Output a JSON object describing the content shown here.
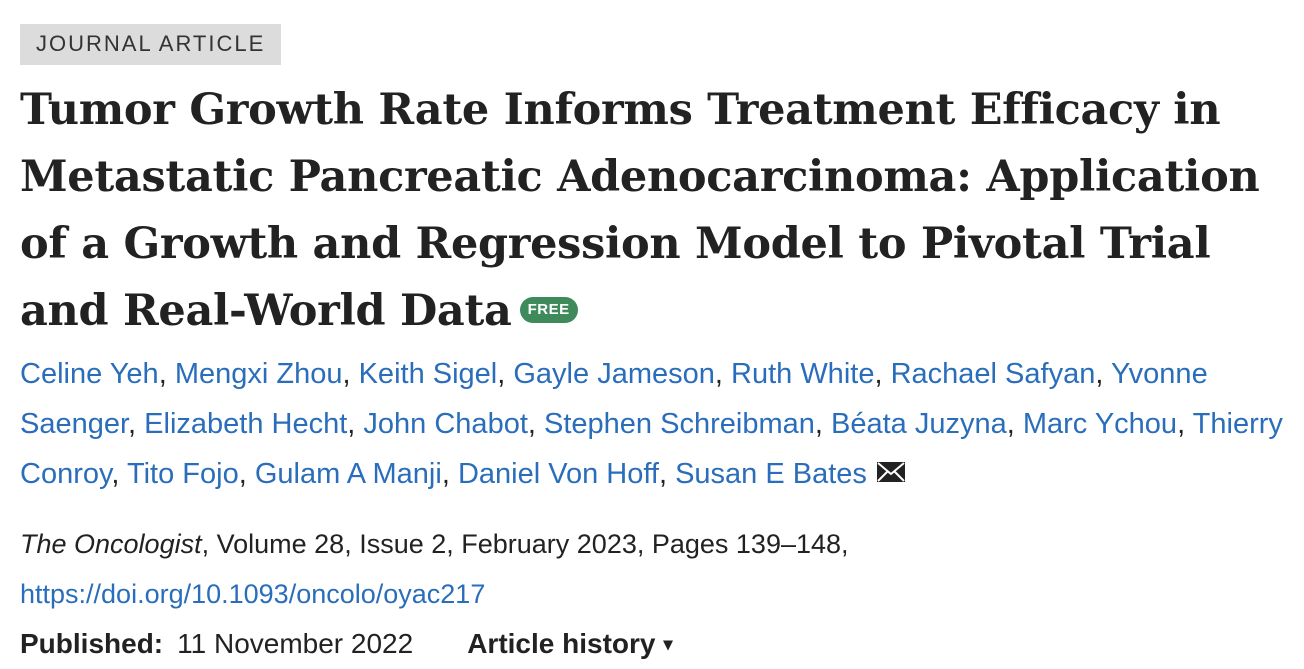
{
  "article_type": "JOURNAL ARTICLE",
  "title": "Tumor Growth Rate Informs Treatment Efficacy in Metastatic Pancreatic Adenocarcinoma: Application of a Growth and Regression Model to Pivotal Trial and Real-World Data",
  "free_badge": "FREE",
  "authors": [
    "Celine Yeh",
    "Mengxi Zhou",
    "Keith Sigel",
    "Gayle Jameson",
    "Ruth White",
    "Rachael Safyan",
    "Yvonne Saenger",
    "Elizabeth Hecht",
    "John Chabot",
    "Stephen Schreibman",
    "Béata Juzyna",
    "Marc Ychou",
    "Thierry Conroy",
    "Tito Fojo",
    "Gulam A Manji",
    "Daniel Von Hoff",
    "Susan E Bates"
  ],
  "author_separator": ",",
  "contact_icon": "envelope-icon",
  "citation": {
    "journal": "The Oncologist",
    "details": ", Volume 28, Issue 2, February 2023, Pages 139–148,",
    "doi": "https://doi.org/10.1093/oncolo/oyac217"
  },
  "published": {
    "label": "Published:",
    "date": "11 November 2022"
  },
  "article_history": {
    "label": "Article history",
    "caret": "▾"
  },
  "colors": {
    "link": "#2a6ebb",
    "free_badge": "#3f8a5a",
    "type_badge_bg": "#dcdcdc",
    "text": "#222222"
  }
}
